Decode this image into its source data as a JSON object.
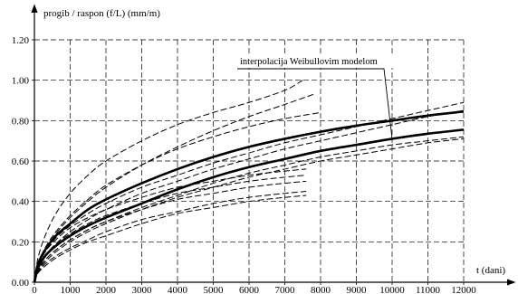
{
  "chart_data": {
    "type": "line",
    "title": "",
    "ylabel": "progib / raspon (f/L) (mm/m)",
    "xlabel": "t (dani)",
    "xlim": [
      0,
      12000
    ],
    "ylim": [
      0.0,
      1.2
    ],
    "x_ticks": [
      0,
      1000,
      2000,
      3000,
      4000,
      5000,
      6000,
      7000,
      8000,
      9000,
      10000,
      11000,
      12000
    ],
    "y_ticks": [
      0.0,
      0.2,
      0.4,
      0.6,
      0.8,
      1.0,
      1.2
    ],
    "x_tick_labels": [
      "0",
      "1000",
      "2000",
      "3000",
      "4000",
      "5000",
      "6000",
      "7000",
      "8000",
      "9000",
      "10000",
      "11000",
      "12000"
    ],
    "y_tick_labels": [
      "0.00",
      "0.20",
      "0.40",
      "0.60",
      "0.80",
      "1.00",
      "1.20"
    ],
    "grid": true,
    "grid_style": "dashed",
    "annotation": "interpolacija Weibullovim modelom",
    "series": [
      {
        "style": "bold",
        "x": [
          0,
          100,
          300,
          600,
          1000,
          1500,
          2000,
          3000,
          4000,
          5000,
          6000,
          7000,
          8000,
          9000,
          10000,
          11000,
          12000
        ],
        "y": [
          0,
          0.07,
          0.13,
          0.18,
          0.23,
          0.28,
          0.32,
          0.39,
          0.46,
          0.52,
          0.57,
          0.61,
          0.65,
          0.68,
          0.71,
          0.735,
          0.755
        ]
      },
      {
        "style": "bold",
        "x": [
          0,
          100,
          300,
          600,
          1000,
          1500,
          2000,
          3000,
          4000,
          5000,
          6000,
          7000,
          8000,
          9000,
          10000,
          11000,
          12000
        ],
        "y": [
          0,
          0.09,
          0.16,
          0.23,
          0.29,
          0.36,
          0.41,
          0.49,
          0.56,
          0.62,
          0.67,
          0.71,
          0.745,
          0.775,
          0.8,
          0.825,
          0.845
        ]
      },
      {
        "style": "dashed",
        "x": [
          0,
          100,
          300,
          600,
          1000,
          1500,
          2000,
          3000,
          4000,
          5000,
          6000,
          7000,
          7500
        ],
        "y": [
          0,
          0.12,
          0.23,
          0.34,
          0.44,
          0.53,
          0.6,
          0.7,
          0.78,
          0.84,
          0.89,
          0.95,
          1.0
        ]
      },
      {
        "style": "dashed",
        "x": [
          0,
          100,
          300,
          600,
          1000,
          1500,
          2000,
          3000,
          4000,
          5000,
          6000,
          7000,
          7800
        ],
        "y": [
          0,
          0.08,
          0.16,
          0.24,
          0.32,
          0.4,
          0.47,
          0.58,
          0.67,
          0.75,
          0.82,
          0.88,
          0.93
        ]
      },
      {
        "style": "dashed",
        "x": [
          0,
          100,
          300,
          600,
          1000,
          1500,
          2000,
          3000,
          4000,
          5000,
          6000,
          7000,
          8000,
          9000,
          10000,
          11000,
          12000
        ],
        "y": [
          0,
          0.08,
          0.15,
          0.22,
          0.28,
          0.34,
          0.39,
          0.47,
          0.53,
          0.59,
          0.64,
          0.69,
          0.73,
          0.77,
          0.81,
          0.85,
          0.89
        ]
      },
      {
        "style": "dashed",
        "x": [
          0,
          100,
          300,
          600,
          1000,
          1500,
          2000,
          3000,
          4000,
          5000,
          6000,
          7000,
          8000,
          9000,
          10000,
          11000,
          12000
        ],
        "y": [
          0,
          0.07,
          0.13,
          0.19,
          0.25,
          0.31,
          0.36,
          0.44,
          0.5,
          0.56,
          0.61,
          0.66,
          0.7,
          0.74,
          0.78,
          0.82,
          0.85
        ]
      },
      {
        "style": "dashed",
        "x": [
          0,
          100,
          300,
          600,
          1000,
          1500,
          2000,
          3000,
          4000,
          5000,
          6000,
          7000,
          8000,
          9000,
          10000,
          11000,
          12000
        ],
        "y": [
          0,
          0.06,
          0.11,
          0.16,
          0.21,
          0.26,
          0.3,
          0.37,
          0.43,
          0.49,
          0.54,
          0.58,
          0.62,
          0.65,
          0.68,
          0.7,
          0.72
        ]
      },
      {
        "style": "dashed",
        "x": [
          0,
          100,
          300,
          600,
          1000,
          1500,
          2000,
          3000,
          4000,
          5000,
          6000,
          7000,
          8000,
          9000,
          10000,
          11000,
          12000
        ],
        "y": [
          0,
          0.055,
          0.1,
          0.15,
          0.2,
          0.25,
          0.29,
          0.36,
          0.42,
          0.47,
          0.52,
          0.56,
          0.6,
          0.63,
          0.66,
          0.69,
          0.71
        ]
      },
      {
        "style": "dashed",
        "x": [
          0,
          100,
          300,
          600,
          1000,
          1500,
          2000,
          3000,
          4000,
          5000,
          6000,
          7000,
          7600
        ],
        "y": [
          0,
          0.08,
          0.15,
          0.21,
          0.27,
          0.32,
          0.36,
          0.42,
          0.47,
          0.5,
          0.53,
          0.55,
          0.56
        ]
      },
      {
        "style": "dashed",
        "x": [
          0,
          100,
          300,
          600,
          1000,
          1500,
          2000,
          3000,
          4000,
          5000,
          6000,
          7000,
          7600
        ],
        "y": [
          0,
          0.07,
          0.13,
          0.19,
          0.24,
          0.29,
          0.33,
          0.39,
          0.44,
          0.47,
          0.5,
          0.52,
          0.53
        ]
      },
      {
        "style": "dashed",
        "x": [
          0,
          100,
          300,
          600,
          1000,
          1500,
          2000,
          3000,
          4000,
          5000,
          6000,
          7000,
          7600
        ],
        "y": [
          0,
          0.06,
          0.11,
          0.16,
          0.21,
          0.26,
          0.3,
          0.36,
          0.41,
          0.44,
          0.47,
          0.49,
          0.5
        ]
      },
      {
        "style": "dashed",
        "x": [
          0,
          100,
          300,
          600,
          1000,
          1500,
          2000,
          3000,
          4000,
          5000,
          6000,
          7000,
          7600
        ],
        "y": [
          0,
          0.05,
          0.09,
          0.13,
          0.17,
          0.21,
          0.25,
          0.31,
          0.35,
          0.39,
          0.42,
          0.44,
          0.45
        ]
      },
      {
        "style": "dashed",
        "x": [
          0,
          100,
          300,
          600,
          1000,
          1500,
          2000,
          3000,
          4000,
          5000,
          6000,
          7000,
          7600
        ],
        "y": [
          0,
          0.045,
          0.08,
          0.12,
          0.16,
          0.2,
          0.23,
          0.29,
          0.34,
          0.37,
          0.4,
          0.42,
          0.43
        ]
      },
      {
        "style": "dashed",
        "x": [
          0,
          100,
          300,
          600,
          1000,
          1500,
          2000,
          3000,
          4000,
          5000,
          6000,
          7000,
          8000
        ],
        "y": [
          0,
          0.09,
          0.17,
          0.25,
          0.33,
          0.41,
          0.48,
          0.58,
          0.66,
          0.72,
          0.77,
          0.81,
          0.84
        ]
      }
    ]
  }
}
